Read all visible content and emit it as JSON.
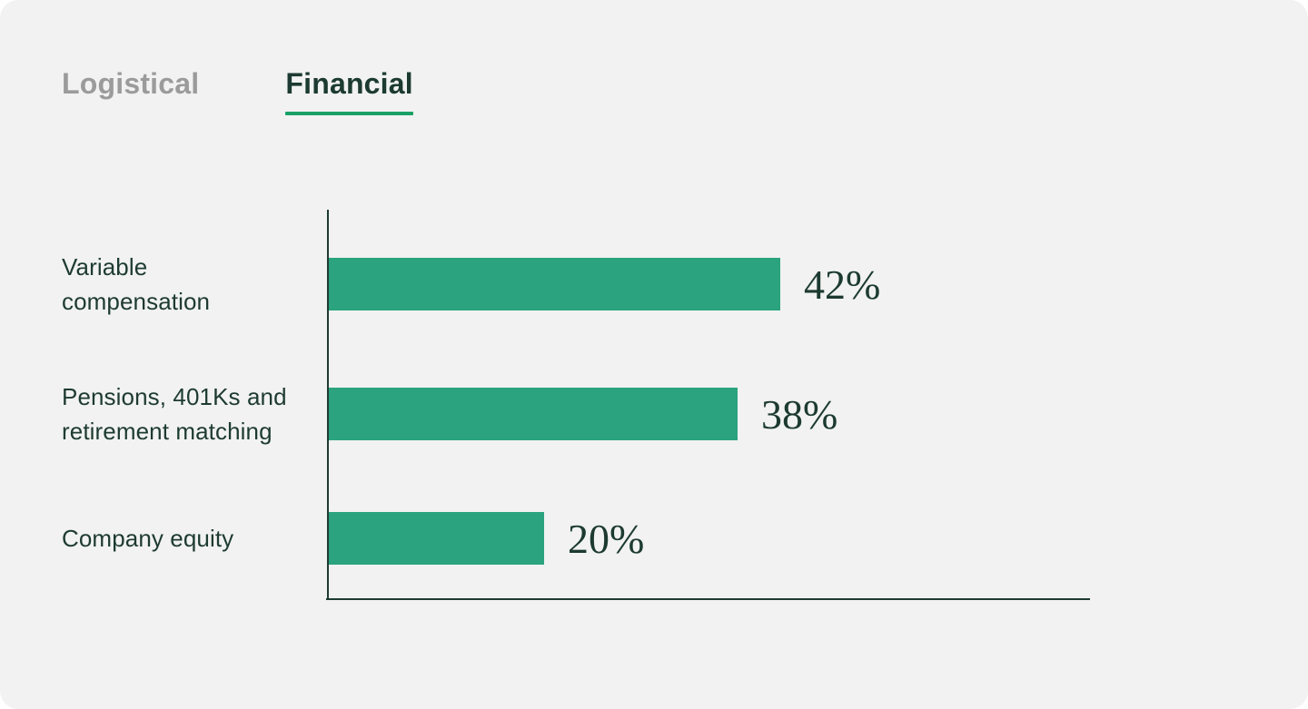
{
  "tabs": [
    {
      "label": "Logistical",
      "active": false
    },
    {
      "label": "Financial",
      "active": true
    }
  ],
  "chart_data": {
    "type": "bar",
    "orientation": "horizontal",
    "title": "",
    "categories": [
      "Variable compensation",
      "Pensions, 401Ks and retirement matching",
      "Company equity"
    ],
    "label_lines": [
      [
        "Variable",
        "compensation"
      ],
      [
        "Pensions, 401Ks and",
        "retirement matching"
      ],
      [
        "Company equity"
      ]
    ],
    "values": [
      42,
      38,
      20
    ],
    "value_labels": [
      "42%",
      "38%",
      "20%"
    ],
    "unit": "%",
    "xlim": [
      0,
      71
    ],
    "grid": false,
    "legend": false,
    "bar_color": "#2AA37E",
    "axis_color": "#1E3B31",
    "text_color": "#1C3A31"
  },
  "colors": {
    "card_background": "#F1F2F1",
    "page_background": "#FFFFFF",
    "inactive_tab": "#9B9B9B",
    "active_tab": "#1C3A31",
    "tab_underline": "#19A066"
  }
}
